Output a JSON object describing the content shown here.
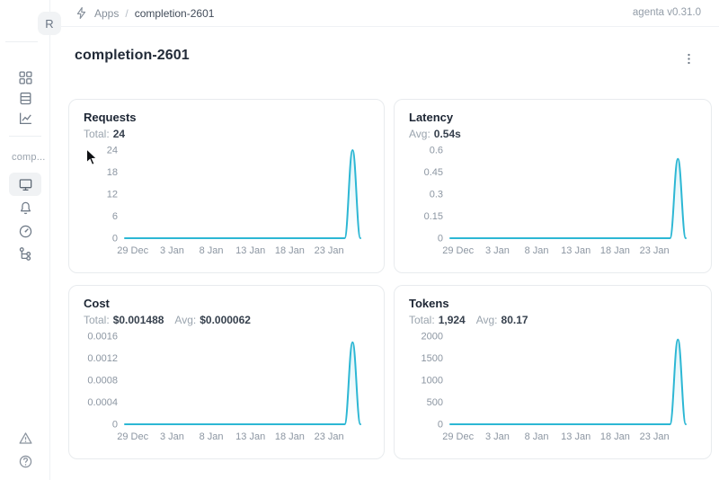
{
  "app": {
    "logo_letter": "R",
    "version_label": "agenta v0.31.0"
  },
  "breadcrumb": {
    "app_label": "Apps",
    "separator": "/",
    "current": "completion-2601"
  },
  "page": {
    "title": "completion-2601",
    "kebab_menu": "more-options"
  },
  "sidebar": {
    "section_label": "comp...",
    "top_items": [
      {
        "name": "apps-grid-icon"
      },
      {
        "name": "registry-icon"
      },
      {
        "name": "chart-trend-icon"
      }
    ],
    "app_items": [
      {
        "name": "playground-icon",
        "active": true
      },
      {
        "name": "bell-icon",
        "active": false
      },
      {
        "name": "gauge-icon",
        "active": false
      },
      {
        "name": "trace-tree-icon",
        "active": false
      }
    ],
    "bottom_items": [
      {
        "name": "alert-triangle-icon"
      },
      {
        "name": "help-circle-icon"
      }
    ]
  },
  "colors": {
    "line": "#2cb7d4",
    "area_top": "rgba(44,183,212,0.16)",
    "area_bottom": "rgba(44,183,212,0)",
    "tick_text": "#8c96a2",
    "card_border": "#e8ebee"
  },
  "charts": [
    {
      "title": "Requests",
      "stats": [
        {
          "label": "Total:",
          "value": "24"
        }
      ],
      "chart_data": {
        "type": "area",
        "title": "Requests",
        "x": [
          "28 Dec",
          "29 Dec",
          "30 Dec",
          "31 Dec",
          "1 Jan",
          "2 Jan",
          "3 Jan",
          "4 Jan",
          "5 Jan",
          "6 Jan",
          "7 Jan",
          "8 Jan",
          "9 Jan",
          "10 Jan",
          "11 Jan",
          "12 Jan",
          "13 Jan",
          "14 Jan",
          "15 Jan",
          "16 Jan",
          "17 Jan",
          "18 Jan",
          "19 Jan",
          "20 Jan",
          "21 Jan",
          "22 Jan",
          "23 Jan",
          "24 Jan",
          "25 Jan",
          "26 Jan",
          "27 Jan"
        ],
        "values": [
          0,
          0,
          0,
          0,
          0,
          0,
          0,
          0,
          0,
          0,
          0,
          0,
          0,
          0,
          0,
          0,
          0,
          0,
          0,
          0,
          0,
          0,
          0,
          0,
          0,
          0,
          0,
          0,
          0,
          24,
          0
        ],
        "y_ticks": [
          "0",
          "6",
          "12",
          "18",
          "24"
        ],
        "ymax": 24,
        "ylim": [
          0,
          24
        ],
        "x_tick_indices": [
          1,
          6,
          11,
          16,
          21,
          26
        ],
        "x_tick_labels": [
          "29 Dec",
          "3 Jan",
          "8 Jan",
          "13 Jan",
          "18 Jan",
          "23 Jan"
        ],
        "grid": false,
        "legend": false
      }
    },
    {
      "title": "Latency",
      "stats": [
        {
          "label": "Avg:",
          "value": "0.54s"
        }
      ],
      "chart_data": {
        "type": "area",
        "title": "Latency",
        "x": [
          "28 Dec",
          "29 Dec",
          "30 Dec",
          "31 Dec",
          "1 Jan",
          "2 Jan",
          "3 Jan",
          "4 Jan",
          "5 Jan",
          "6 Jan",
          "7 Jan",
          "8 Jan",
          "9 Jan",
          "10 Jan",
          "11 Jan",
          "12 Jan",
          "13 Jan",
          "14 Jan",
          "15 Jan",
          "16 Jan",
          "17 Jan",
          "18 Jan",
          "19 Jan",
          "20 Jan",
          "21 Jan",
          "22 Jan",
          "23 Jan",
          "24 Jan",
          "25 Jan",
          "26 Jan",
          "27 Jan"
        ],
        "values": [
          0,
          0,
          0,
          0,
          0,
          0,
          0,
          0,
          0,
          0,
          0,
          0,
          0,
          0,
          0,
          0,
          0,
          0,
          0,
          0,
          0,
          0,
          0,
          0,
          0,
          0,
          0,
          0,
          0,
          0.54,
          0
        ],
        "y_ticks": [
          "0",
          "0.15",
          "0.3",
          "0.45",
          "0.6"
        ],
        "ymax": 0.6,
        "ylim": [
          0,
          0.6
        ],
        "x_tick_indices": [
          1,
          6,
          11,
          16,
          21,
          26
        ],
        "x_tick_labels": [
          "29 Dec",
          "3 Jan",
          "8 Jan",
          "13 Jan",
          "18 Jan",
          "23 Jan"
        ],
        "grid": false,
        "legend": false
      }
    },
    {
      "title": "Cost",
      "stats": [
        {
          "label": "Total:",
          "value": "$0.001488"
        },
        {
          "label": "Avg:",
          "value": "$0.000062"
        }
      ],
      "chart_data": {
        "type": "area",
        "title": "Cost",
        "x": [
          "28 Dec",
          "29 Dec",
          "30 Dec",
          "31 Dec",
          "1 Jan",
          "2 Jan",
          "3 Jan",
          "4 Jan",
          "5 Jan",
          "6 Jan",
          "7 Jan",
          "8 Jan",
          "9 Jan",
          "10 Jan",
          "11 Jan",
          "12 Jan",
          "13 Jan",
          "14 Jan",
          "15 Jan",
          "16 Jan",
          "17 Jan",
          "18 Jan",
          "19 Jan",
          "20 Jan",
          "21 Jan",
          "22 Jan",
          "23 Jan",
          "24 Jan",
          "25 Jan",
          "26 Jan",
          "27 Jan"
        ],
        "values": [
          0,
          0,
          0,
          0,
          0,
          0,
          0,
          0,
          0,
          0,
          0,
          0,
          0,
          0,
          0,
          0,
          0,
          0,
          0,
          0,
          0,
          0,
          0,
          0,
          0,
          0,
          0,
          0,
          0,
          0.001488,
          0
        ],
        "y_ticks": [
          "0",
          "0.0004",
          "0.0008",
          "0.0012",
          "0.0016"
        ],
        "ymax": 0.0016,
        "ylim": [
          0,
          0.0016
        ],
        "x_tick_indices": [
          1,
          6,
          11,
          16,
          21,
          26
        ],
        "x_tick_labels": [
          "29 Dec",
          "3 Jan",
          "8 Jan",
          "13 Jan",
          "18 Jan",
          "23 Jan"
        ],
        "grid": false,
        "legend": false
      }
    },
    {
      "title": "Tokens",
      "stats": [
        {
          "label": "Total:",
          "value": "1,924"
        },
        {
          "label": "Avg:",
          "value": "80.17"
        }
      ],
      "chart_data": {
        "type": "area",
        "title": "Tokens",
        "x": [
          "28 Dec",
          "29 Dec",
          "30 Dec",
          "31 Dec",
          "1 Jan",
          "2 Jan",
          "3 Jan",
          "4 Jan",
          "5 Jan",
          "6 Jan",
          "7 Jan",
          "8 Jan",
          "9 Jan",
          "10 Jan",
          "11 Jan",
          "12 Jan",
          "13 Jan",
          "14 Jan",
          "15 Jan",
          "16 Jan",
          "17 Jan",
          "18 Jan",
          "19 Jan",
          "20 Jan",
          "21 Jan",
          "22 Jan",
          "23 Jan",
          "24 Jan",
          "25 Jan",
          "26 Jan",
          "27 Jan"
        ],
        "values": [
          0,
          0,
          0,
          0,
          0,
          0,
          0,
          0,
          0,
          0,
          0,
          0,
          0,
          0,
          0,
          0,
          0,
          0,
          0,
          0,
          0,
          0,
          0,
          0,
          0,
          0,
          0,
          0,
          0,
          1924,
          0
        ],
        "y_ticks": [
          "0",
          "500",
          "1000",
          "1500",
          "2000"
        ],
        "ymax": 2000,
        "ylim": [
          0,
          2000
        ],
        "x_tick_indices": [
          1,
          6,
          11,
          16,
          21,
          26
        ],
        "x_tick_labels": [
          "29 Dec",
          "3 Jan",
          "8 Jan",
          "13 Jan",
          "18 Jan",
          "23 Jan"
        ],
        "grid": false,
        "legend": false
      }
    }
  ]
}
